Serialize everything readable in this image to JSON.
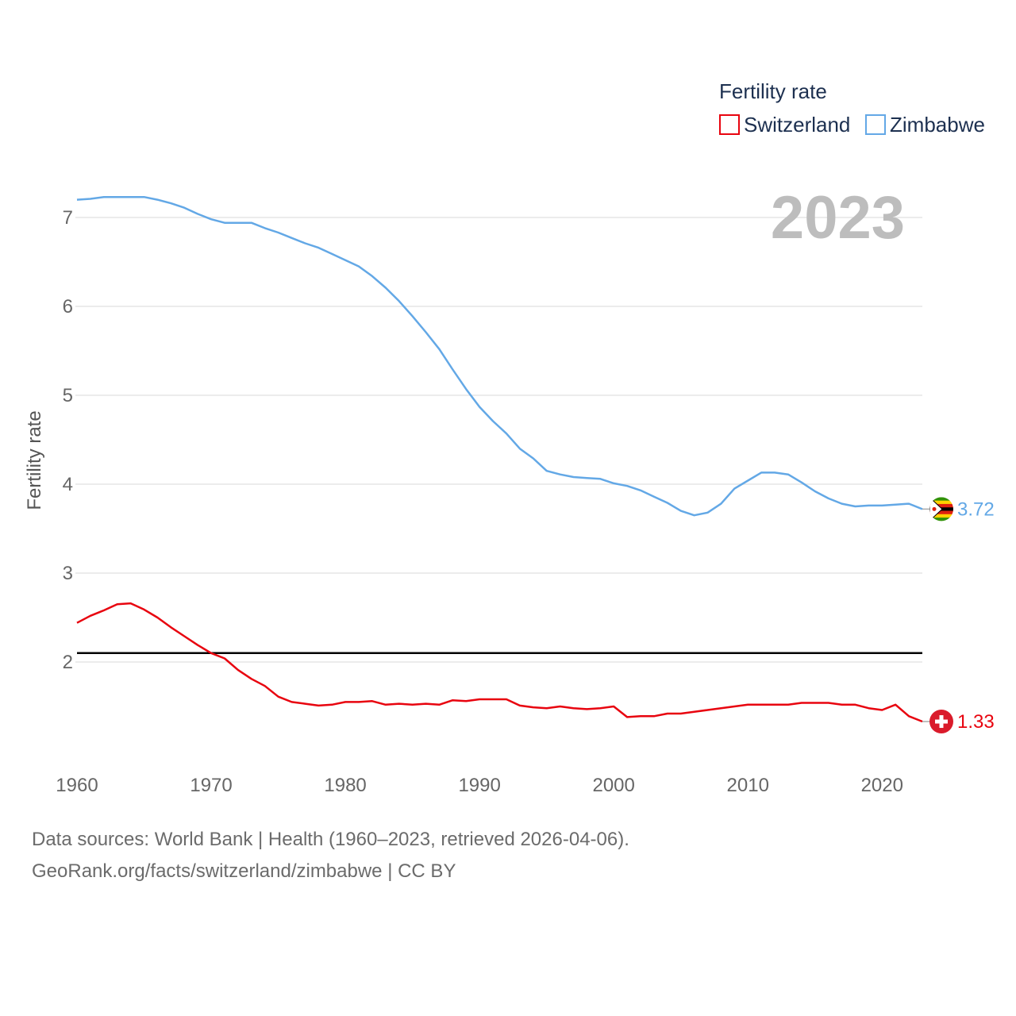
{
  "chart_data": {
    "type": "line",
    "legend_title": "Fertility rate",
    "ylabel": "Fertility rate",
    "year_label": "2023",
    "x_ticks": [
      1960,
      1970,
      1980,
      1990,
      2000,
      2010,
      2020
    ],
    "y_ticks": [
      2,
      3,
      4,
      5,
      6,
      7
    ],
    "xlim": [
      1960,
      2023
    ],
    "ylim": [
      1.0,
      7.45
    ],
    "reference_line": 2.1,
    "x": [
      1960,
      1961,
      1962,
      1963,
      1964,
      1965,
      1966,
      1967,
      1968,
      1969,
      1970,
      1971,
      1972,
      1973,
      1974,
      1975,
      1976,
      1977,
      1978,
      1979,
      1980,
      1981,
      1982,
      1983,
      1984,
      1985,
      1986,
      1987,
      1988,
      1989,
      1990,
      1991,
      1992,
      1993,
      1994,
      1995,
      1996,
      1997,
      1998,
      1999,
      2000,
      2001,
      2002,
      2003,
      2004,
      2005,
      2006,
      2007,
      2008,
      2009,
      2010,
      2011,
      2012,
      2013,
      2014,
      2015,
      2016,
      2017,
      2018,
      2019,
      2020,
      2021,
      2022,
      2023
    ],
    "series": [
      {
        "name": "Switzerland",
        "color": "#e8040f",
        "flag": "switzerland-flag",
        "end_label": "1.33",
        "values": [
          2.44,
          2.52,
          2.58,
          2.65,
          2.66,
          2.59,
          2.5,
          2.39,
          2.29,
          2.19,
          2.1,
          2.04,
          1.91,
          1.81,
          1.73,
          1.61,
          1.55,
          1.53,
          1.51,
          1.52,
          1.55,
          1.55,
          1.56,
          1.52,
          1.53,
          1.52,
          1.53,
          1.52,
          1.57,
          1.56,
          1.58,
          1.58,
          1.58,
          1.51,
          1.49,
          1.48,
          1.5,
          1.48,
          1.47,
          1.48,
          1.5,
          1.38,
          1.39,
          1.39,
          1.42,
          1.42,
          1.44,
          1.46,
          1.48,
          1.5,
          1.52,
          1.52,
          1.52,
          1.52,
          1.54,
          1.54,
          1.54,
          1.52,
          1.52,
          1.48,
          1.46,
          1.52,
          1.39,
          1.33
        ]
      },
      {
        "name": "Zimbabwe",
        "color": "#63a8e6",
        "flag": "zimbabwe-flag",
        "end_label": "3.72",
        "values": [
          7.2,
          7.21,
          7.23,
          7.23,
          7.23,
          7.23,
          7.2,
          7.16,
          7.11,
          7.04,
          6.98,
          6.94,
          6.94,
          6.94,
          6.88,
          6.83,
          6.77,
          6.71,
          6.66,
          6.59,
          6.52,
          6.45,
          6.34,
          6.21,
          6.06,
          5.89,
          5.71,
          5.52,
          5.29,
          5.07,
          4.87,
          4.71,
          4.57,
          4.4,
          4.29,
          4.15,
          4.11,
          4.08,
          4.07,
          4.06,
          4.01,
          3.98,
          3.93,
          3.86,
          3.79,
          3.7,
          3.65,
          3.68,
          3.78,
          3.95,
          4.04,
          4.13,
          4.13,
          4.11,
          4.02,
          3.92,
          3.84,
          3.78,
          3.75,
          3.76,
          3.76,
          3.77,
          3.78,
          3.72
        ]
      }
    ]
  },
  "footer": {
    "line1": "Data sources: World Bank | Health (1960–2023, retrieved 2026-04-06).",
    "line2": "GeoRank.org/facts/switzerland/zimbabwe | CC BY"
  }
}
